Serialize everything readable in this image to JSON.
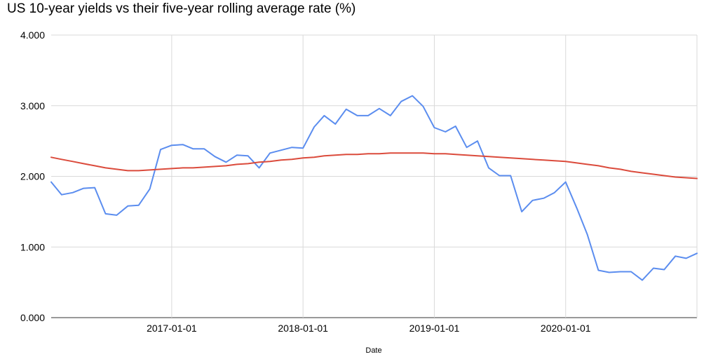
{
  "chart_data": {
    "type": "line",
    "title": "US 10-year yields vs their five-year rolling average rate (%)",
    "xlabel": "Date",
    "ylabel": "",
    "ylim": [
      0,
      4
    ],
    "xlim": [
      "2016-02-01",
      "2020-12-31"
    ],
    "y_ticks": [
      "0.000",
      "1.000",
      "2.000",
      "3.000",
      "4.000"
    ],
    "x_ticks": [
      "2017-01-01",
      "2018-01-01",
      "2019-01-01",
      "2020-01-01"
    ],
    "grid": true,
    "legend": "none",
    "x": [
      "2016-02-01",
      "2016-03-01",
      "2016-04-01",
      "2016-05-01",
      "2016-06-01",
      "2016-07-01",
      "2016-08-01",
      "2016-09-01",
      "2016-10-01",
      "2016-11-01",
      "2016-12-01",
      "2017-01-01",
      "2017-02-01",
      "2017-03-01",
      "2017-04-01",
      "2017-05-01",
      "2017-06-01",
      "2017-07-01",
      "2017-08-01",
      "2017-09-01",
      "2017-10-01",
      "2017-11-01",
      "2017-12-01",
      "2018-01-01",
      "2018-02-01",
      "2018-03-01",
      "2018-04-01",
      "2018-05-01",
      "2018-06-01",
      "2018-07-01",
      "2018-08-01",
      "2018-09-01",
      "2018-10-01",
      "2018-11-01",
      "2018-12-01",
      "2019-01-01",
      "2019-02-01",
      "2019-03-01",
      "2019-04-01",
      "2019-05-01",
      "2019-06-01",
      "2019-07-01",
      "2019-08-01",
      "2019-09-01",
      "2019-10-01",
      "2019-11-01",
      "2019-12-01",
      "2020-01-01",
      "2020-02-01",
      "2020-03-01",
      "2020-04-01",
      "2020-05-01",
      "2020-06-01",
      "2020-07-01",
      "2020-08-01",
      "2020-09-01",
      "2020-10-01",
      "2020-11-01",
      "2020-12-01",
      "2020-12-31"
    ],
    "series": [
      {
        "name": "",
        "color": "#5b8def",
        "values": [
          1.92,
          1.74,
          1.77,
          1.83,
          1.84,
          1.47,
          1.45,
          1.58,
          1.59,
          1.82,
          2.38,
          2.44,
          2.45,
          2.39,
          2.39,
          2.28,
          2.2,
          2.3,
          2.29,
          2.12,
          2.33,
          2.37,
          2.41,
          2.4,
          2.7,
          2.86,
          2.74,
          2.95,
          2.86,
          2.86,
          2.96,
          2.86,
          3.06,
          3.14,
          2.99,
          2.69,
          2.63,
          2.71,
          2.41,
          2.5,
          2.12,
          2.01,
          2.01,
          1.5,
          1.66,
          1.69,
          1.77,
          1.92,
          1.55,
          1.18,
          0.67,
          0.64,
          0.65,
          0.65,
          0.53,
          0.7,
          0.68,
          0.87,
          0.84,
          0.91
        ]
      },
      {
        "name": "",
        "color": "#db4b3c",
        "values": [
          2.27,
          2.24,
          2.21,
          2.18,
          2.15,
          2.12,
          2.1,
          2.08,
          2.08,
          2.09,
          2.1,
          2.11,
          2.12,
          2.12,
          2.13,
          2.14,
          2.15,
          2.17,
          2.18,
          2.2,
          2.21,
          2.23,
          2.24,
          2.26,
          2.27,
          2.29,
          2.3,
          2.31,
          2.31,
          2.32,
          2.32,
          2.33,
          2.33,
          2.33,
          2.33,
          2.32,
          2.32,
          2.31,
          2.3,
          2.29,
          2.28,
          2.27,
          2.26,
          2.25,
          2.24,
          2.23,
          2.22,
          2.21,
          2.19,
          2.17,
          2.15,
          2.12,
          2.1,
          2.07,
          2.05,
          2.03,
          2.01,
          1.99,
          1.98,
          1.97
        ]
      }
    ]
  }
}
